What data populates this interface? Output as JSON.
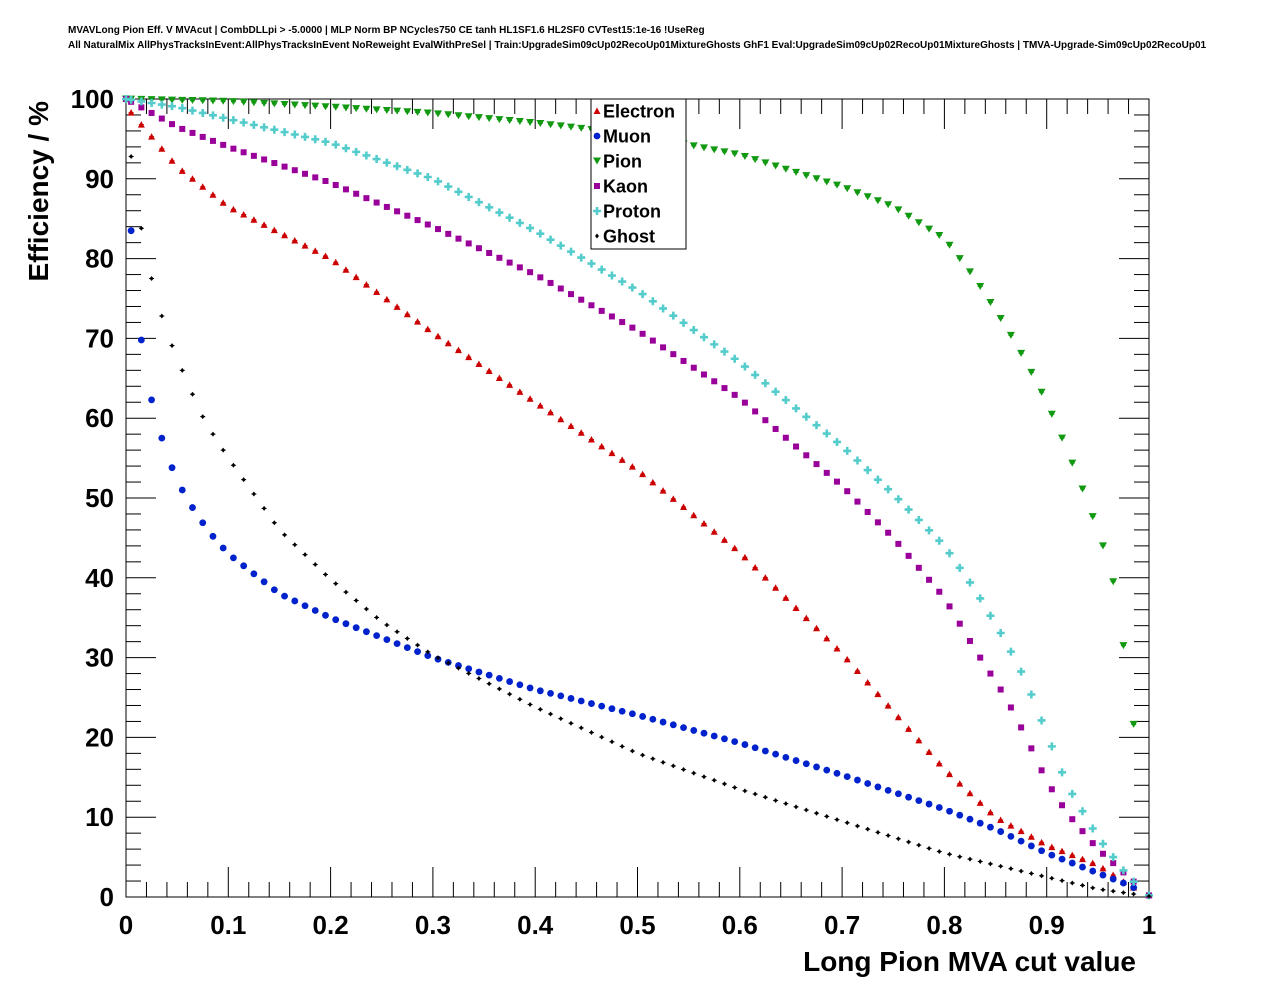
{
  "header": {
    "line1": "MVAVLong Pion Eff. V MVAcut | CombDLLpi > -5.0000 | MLP Norm BP NCycles750 CE tanh HL1SF1.6 HL2SF0 CVTest15:1e-16 !UseReg",
    "line2": "All NaturalMix AllPhysTracksInEvent:AllPhysTracksInEvent NoReweight EvalWithPreSel | Train:UpgradeSim09cUp02RecoUp01MixtureGhosts GhF1 Eval:UpgradeSim09cUp02RecoUp01MixtureGhosts | TMVA-Upgrade-Sim09cUp02RecoUp01"
  },
  "chart_data": {
    "type": "scatter",
    "xlabel": "Long Pion MVA cut value",
    "ylabel": "Efficiency / %",
    "xlim": [
      0,
      1
    ],
    "ylim": [
      0,
      100
    ],
    "x_ticks": [
      "0",
      "0.1",
      "0.2",
      "0.3",
      "0.4",
      "0.5",
      "0.6",
      "0.7",
      "0.8",
      "0.9",
      "1"
    ],
    "y_ticks": [
      "0",
      "10",
      "20",
      "30",
      "40",
      "50",
      "60",
      "70",
      "80",
      "90",
      "100"
    ],
    "legend_position": "top-center",
    "grid": false,
    "series": [
      {
        "name": "Electron",
        "color": "#cc0000",
        "marker": "triangle-up",
        "anchors": [
          [
            0,
            100
          ],
          [
            0.005,
            98.3
          ],
          [
            0.05,
            91.5
          ],
          [
            0.1,
            86.5
          ],
          [
            0.2,
            80
          ],
          [
            0.3,
            70.7
          ],
          [
            0.4,
            62
          ],
          [
            0.5,
            53.5
          ],
          [
            0.6,
            43.2
          ],
          [
            0.7,
            30.5
          ],
          [
            0.8,
            16
          ],
          [
            0.85,
            10
          ],
          [
            0.9,
            6.5
          ],
          [
            0.95,
            4
          ],
          [
            0.98,
            1.5
          ],
          [
            1,
            0.2
          ]
        ]
      },
      {
        "name": "Muon",
        "color": "#0022cc",
        "marker": "circle",
        "anchors": [
          [
            0,
            100
          ],
          [
            0.005,
            83.5
          ],
          [
            0.015,
            69.8
          ],
          [
            0.025,
            62.3
          ],
          [
            0.035,
            57.5
          ],
          [
            0.045,
            53.8
          ],
          [
            0.055,
            51
          ],
          [
            0.065,
            48.8
          ],
          [
            0.075,
            46.9
          ],
          [
            0.085,
            45.2
          ],
          [
            0.1,
            43
          ],
          [
            0.15,
            38
          ],
          [
            0.2,
            35
          ],
          [
            0.3,
            30
          ],
          [
            0.4,
            26
          ],
          [
            0.5,
            22.8
          ],
          [
            0.6,
            19.3
          ],
          [
            0.7,
            15.3
          ],
          [
            0.8,
            11
          ],
          [
            0.85,
            8.5
          ],
          [
            0.9,
            5.5
          ],
          [
            0.95,
            3
          ],
          [
            0.98,
            1.5
          ],
          [
            1,
            0.2
          ]
        ]
      },
      {
        "name": "Pion",
        "color": "#119911",
        "marker": "triangle-down",
        "anchors": [
          [
            0,
            100
          ],
          [
            0.1,
            99.7
          ],
          [
            0.2,
            99
          ],
          [
            0.3,
            98.2
          ],
          [
            0.4,
            97
          ],
          [
            0.5,
            95.5
          ],
          [
            0.6,
            93
          ],
          [
            0.7,
            89
          ],
          [
            0.75,
            86.5
          ],
          [
            0.8,
            82.5
          ],
          [
            0.83,
            77.5
          ],
          [
            0.86,
            71.5
          ],
          [
            0.88,
            67
          ],
          [
            0.9,
            62
          ],
          [
            0.92,
            56
          ],
          [
            0.94,
            49.5
          ],
          [
            0.955,
            44
          ],
          [
            0.965,
            39.5
          ],
          [
            0.975,
            31.5
          ],
          [
            0.99,
            16.7
          ]
        ]
      },
      {
        "name": "Kaon",
        "color": "#990099",
        "marker": "square",
        "anchors": [
          [
            0,
            100
          ],
          [
            0.05,
            96.5
          ],
          [
            0.1,
            94
          ],
          [
            0.2,
            89.5
          ],
          [
            0.3,
            84
          ],
          [
            0.4,
            78
          ],
          [
            0.5,
            71
          ],
          [
            0.6,
            62.5
          ],
          [
            0.7,
            51.5
          ],
          [
            0.75,
            45
          ],
          [
            0.8,
            37.5
          ],
          [
            0.83,
            31
          ],
          [
            0.86,
            25
          ],
          [
            0.88,
            20
          ],
          [
            0.9,
            14.5
          ],
          [
            0.92,
            10.5
          ],
          [
            0.95,
            6
          ],
          [
            0.98,
            2.5
          ],
          [
            1,
            0.2
          ]
        ]
      },
      {
        "name": "Proton",
        "color": "#55cccc",
        "marker": "cross",
        "anchors": [
          [
            0,
            100
          ],
          [
            0.05,
            99
          ],
          [
            0.1,
            97.5
          ],
          [
            0.2,
            94.5
          ],
          [
            0.3,
            90
          ],
          [
            0.4,
            83.5
          ],
          [
            0.5,
            76
          ],
          [
            0.6,
            67
          ],
          [
            0.7,
            56.5
          ],
          [
            0.75,
            50.5
          ],
          [
            0.8,
            44
          ],
          [
            0.83,
            38.5
          ],
          [
            0.86,
            32
          ],
          [
            0.88,
            27
          ],
          [
            0.9,
            20.5
          ],
          [
            0.92,
            14
          ],
          [
            0.95,
            7.5
          ],
          [
            0.98,
            2.5
          ],
          [
            1,
            0.2
          ]
        ]
      },
      {
        "name": "Ghost",
        "color": "#000000",
        "marker": "diamond",
        "anchors": [
          [
            0.005,
            92.8
          ],
          [
            0.015,
            83.8
          ],
          [
            0.025,
            77.5
          ],
          [
            0.035,
            72.8
          ],
          [
            0.045,
            69.1
          ],
          [
            0.055,
            66
          ],
          [
            0.065,
            63
          ],
          [
            0.075,
            60.2
          ],
          [
            0.085,
            58
          ],
          [
            0.1,
            55
          ],
          [
            0.15,
            46
          ],
          [
            0.2,
            39.8
          ],
          [
            0.25,
            34.5
          ],
          [
            0.3,
            30.3
          ],
          [
            0.4,
            23.8
          ],
          [
            0.5,
            18
          ],
          [
            0.6,
            13.5
          ],
          [
            0.7,
            9.5
          ],
          [
            0.8,
            5.5
          ],
          [
            0.9,
            2.5
          ],
          [
            0.95,
            1
          ],
          [
            1,
            0.1
          ]
        ]
      }
    ]
  }
}
